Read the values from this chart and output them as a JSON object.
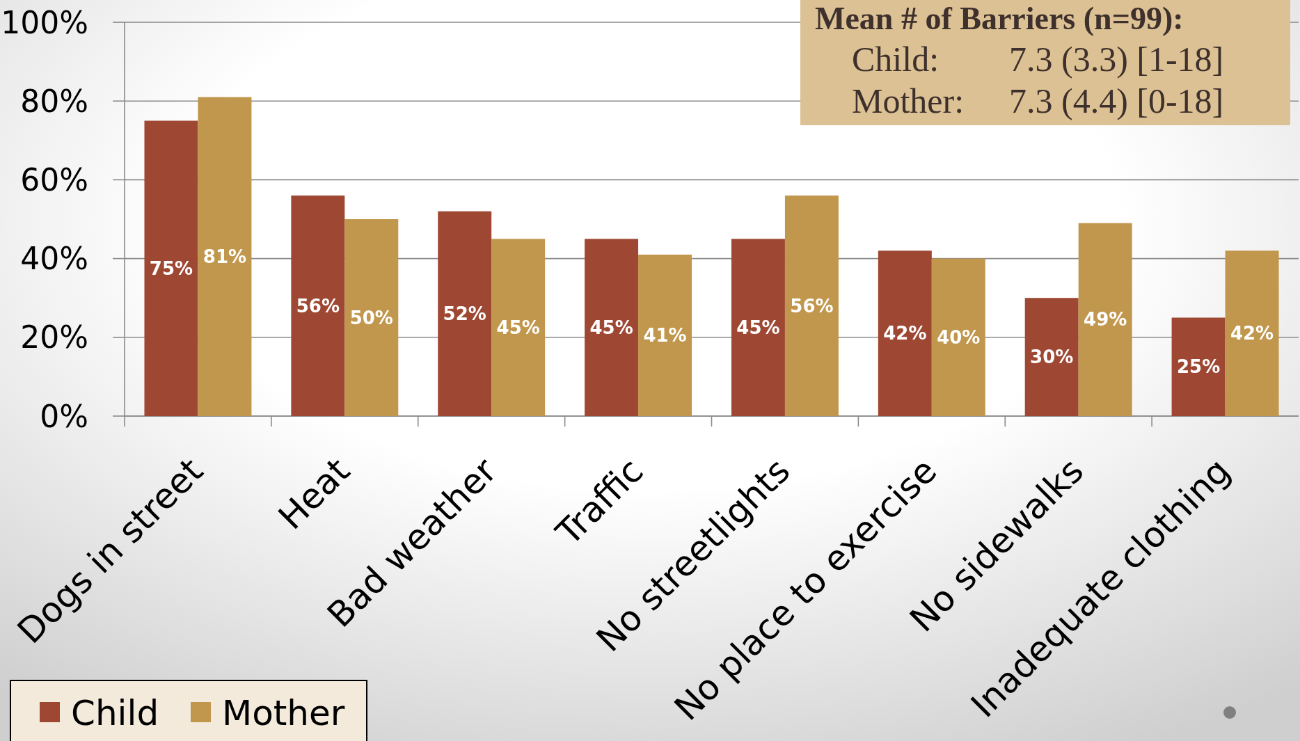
{
  "chart_data": {
    "type": "bar",
    "categories": [
      "Dogs in street",
      "Heat",
      "Bad weather",
      "Traffic",
      "No streetlights",
      "No place to exercise",
      "No sidewalks",
      "Inadequate clothing"
    ],
    "series": [
      {
        "name": "Child",
        "color": "#9e4834",
        "values": [
          75,
          56,
          52,
          45,
          45,
          42,
          30,
          25
        ],
        "value_labels": [
          "75%",
          "56%",
          "52%",
          "45%",
          "45%",
          "42%",
          "30%",
          "25%"
        ]
      },
      {
        "name": "Mother",
        "color": "#c0974c",
        "values": [
          81,
          50,
          45,
          41,
          56,
          40,
          49,
          42
        ],
        "value_labels": [
          "81%",
          "50%",
          "45%",
          "41%",
          "56%",
          "40%",
          "49%",
          "42%"
        ]
      }
    ],
    "ylim": [
      0,
      100
    ],
    "yticks": [
      {
        "value": 0,
        "label": "0%"
      },
      {
        "value": 20,
        "label": "20%"
      },
      {
        "value": 40,
        "label": "40%"
      },
      {
        "value": 60,
        "label": "60%"
      },
      {
        "value": 80,
        "label": "80%"
      },
      {
        "value": 100,
        "label": "100%"
      }
    ],
    "grid": "y",
    "legend": "bottom left",
    "annotations": [
      "Mean # of Barriers (n=99):",
      "Child:\t7.3 (3.3) [1-18]",
      "Mother:\t7.3 (4.4) [0-18]"
    ]
  }
}
